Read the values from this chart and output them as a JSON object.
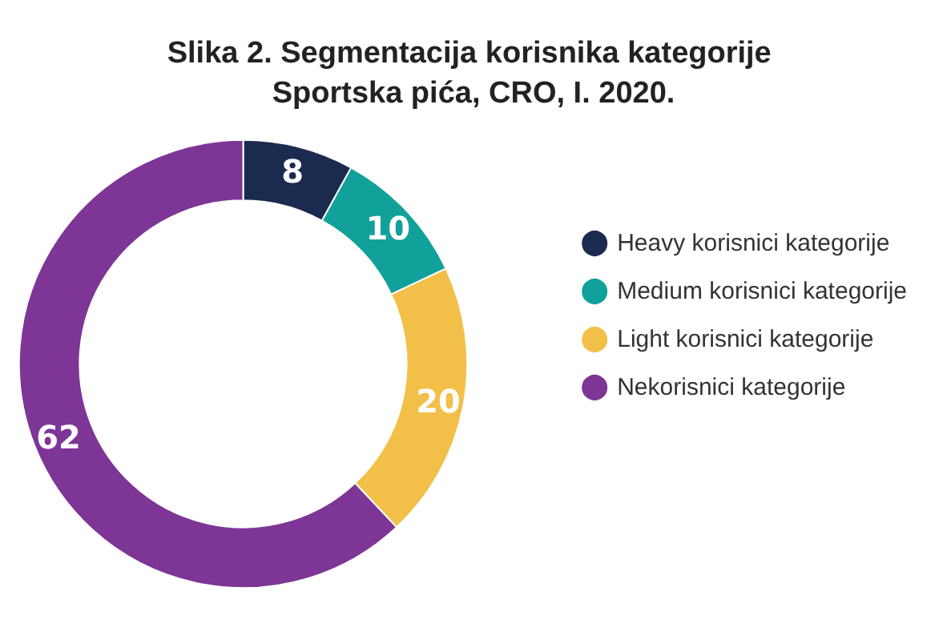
{
  "chart_data": {
    "type": "donut",
    "title": "Slika 2. Segmentacija korisnika kategorije Sportska pića, CRO, I. 2020.",
    "categories": [
      "Heavy korisnici kategorije",
      "Medium korisnici kategorije",
      "Light korisnici kategorije",
      "Nekorisnici kategorije"
    ],
    "values": [
      8,
      10,
      20,
      62
    ],
    "colors": [
      "#1b2a4f",
      "#12a19a",
      "#f2bf48",
      "#7d3596"
    ],
    "data_labels": true,
    "legend": "right"
  }
}
